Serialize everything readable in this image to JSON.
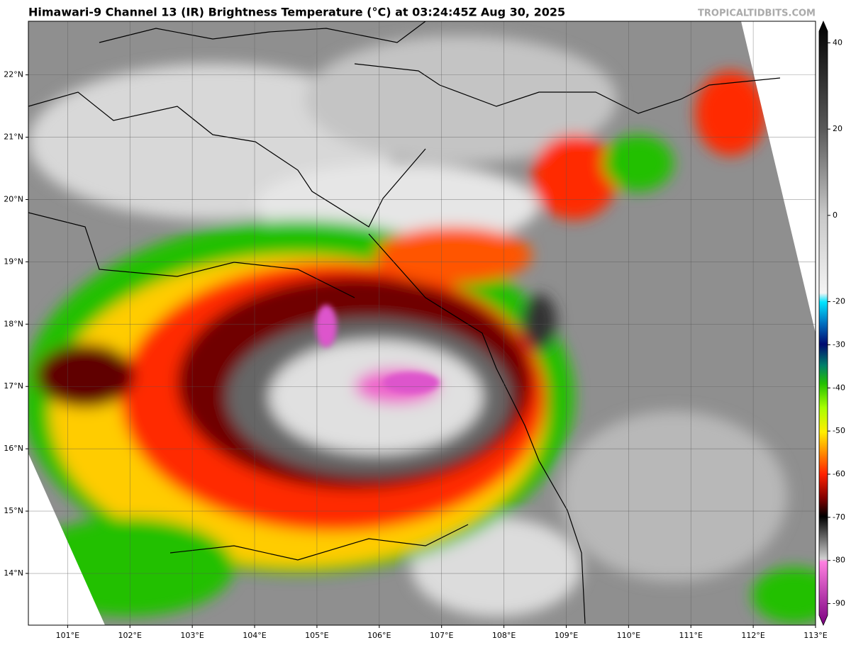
{
  "header": {
    "title": "Himawari-9 Channel 13 (IR) Brightness Temperature (°C) at 03:24:45Z Aug 30, 2025",
    "watermark": "TROPICALTIDBITS.COM"
  },
  "map": {
    "lonlim": [
      100.37,
      113
    ],
    "latlim": [
      13.17,
      22.86
    ],
    "lon_ticks": [
      {
        "value": 101,
        "label": "101°E"
      },
      {
        "value": 102,
        "label": "102°E"
      },
      {
        "value": 103,
        "label": "103°E"
      },
      {
        "value": 104,
        "label": "104°E"
      },
      {
        "value": 105,
        "label": "105°E"
      },
      {
        "value": 106,
        "label": "106°E"
      },
      {
        "value": 107,
        "label": "107°E"
      },
      {
        "value": 108,
        "label": "108°E"
      },
      {
        "value": 109,
        "label": "109°E"
      },
      {
        "value": 110,
        "label": "110°E"
      },
      {
        "value": 111,
        "label": "111°E"
      },
      {
        "value": 112,
        "label": "112°E"
      },
      {
        "value": 113,
        "label": "113°E"
      }
    ],
    "lat_ticks": [
      {
        "value": 14,
        "label": "14°N"
      },
      {
        "value": 15,
        "label": "15°N"
      },
      {
        "value": 16,
        "label": "16°N"
      },
      {
        "value": 17,
        "label": "17°N"
      },
      {
        "value": 18,
        "label": "18°N"
      },
      {
        "value": 19,
        "label": "19°N"
      },
      {
        "value": 20,
        "label": "20°N"
      },
      {
        "value": 21,
        "label": "21°N"
      },
      {
        "value": 22,
        "label": "22°N"
      }
    ]
  },
  "colorbar": {
    "lim": [
      -95,
      45
    ],
    "ticks": [
      40,
      20,
      0,
      -20,
      -30,
      -40,
      -50,
      -60,
      -70,
      -80,
      -90
    ]
  }
}
